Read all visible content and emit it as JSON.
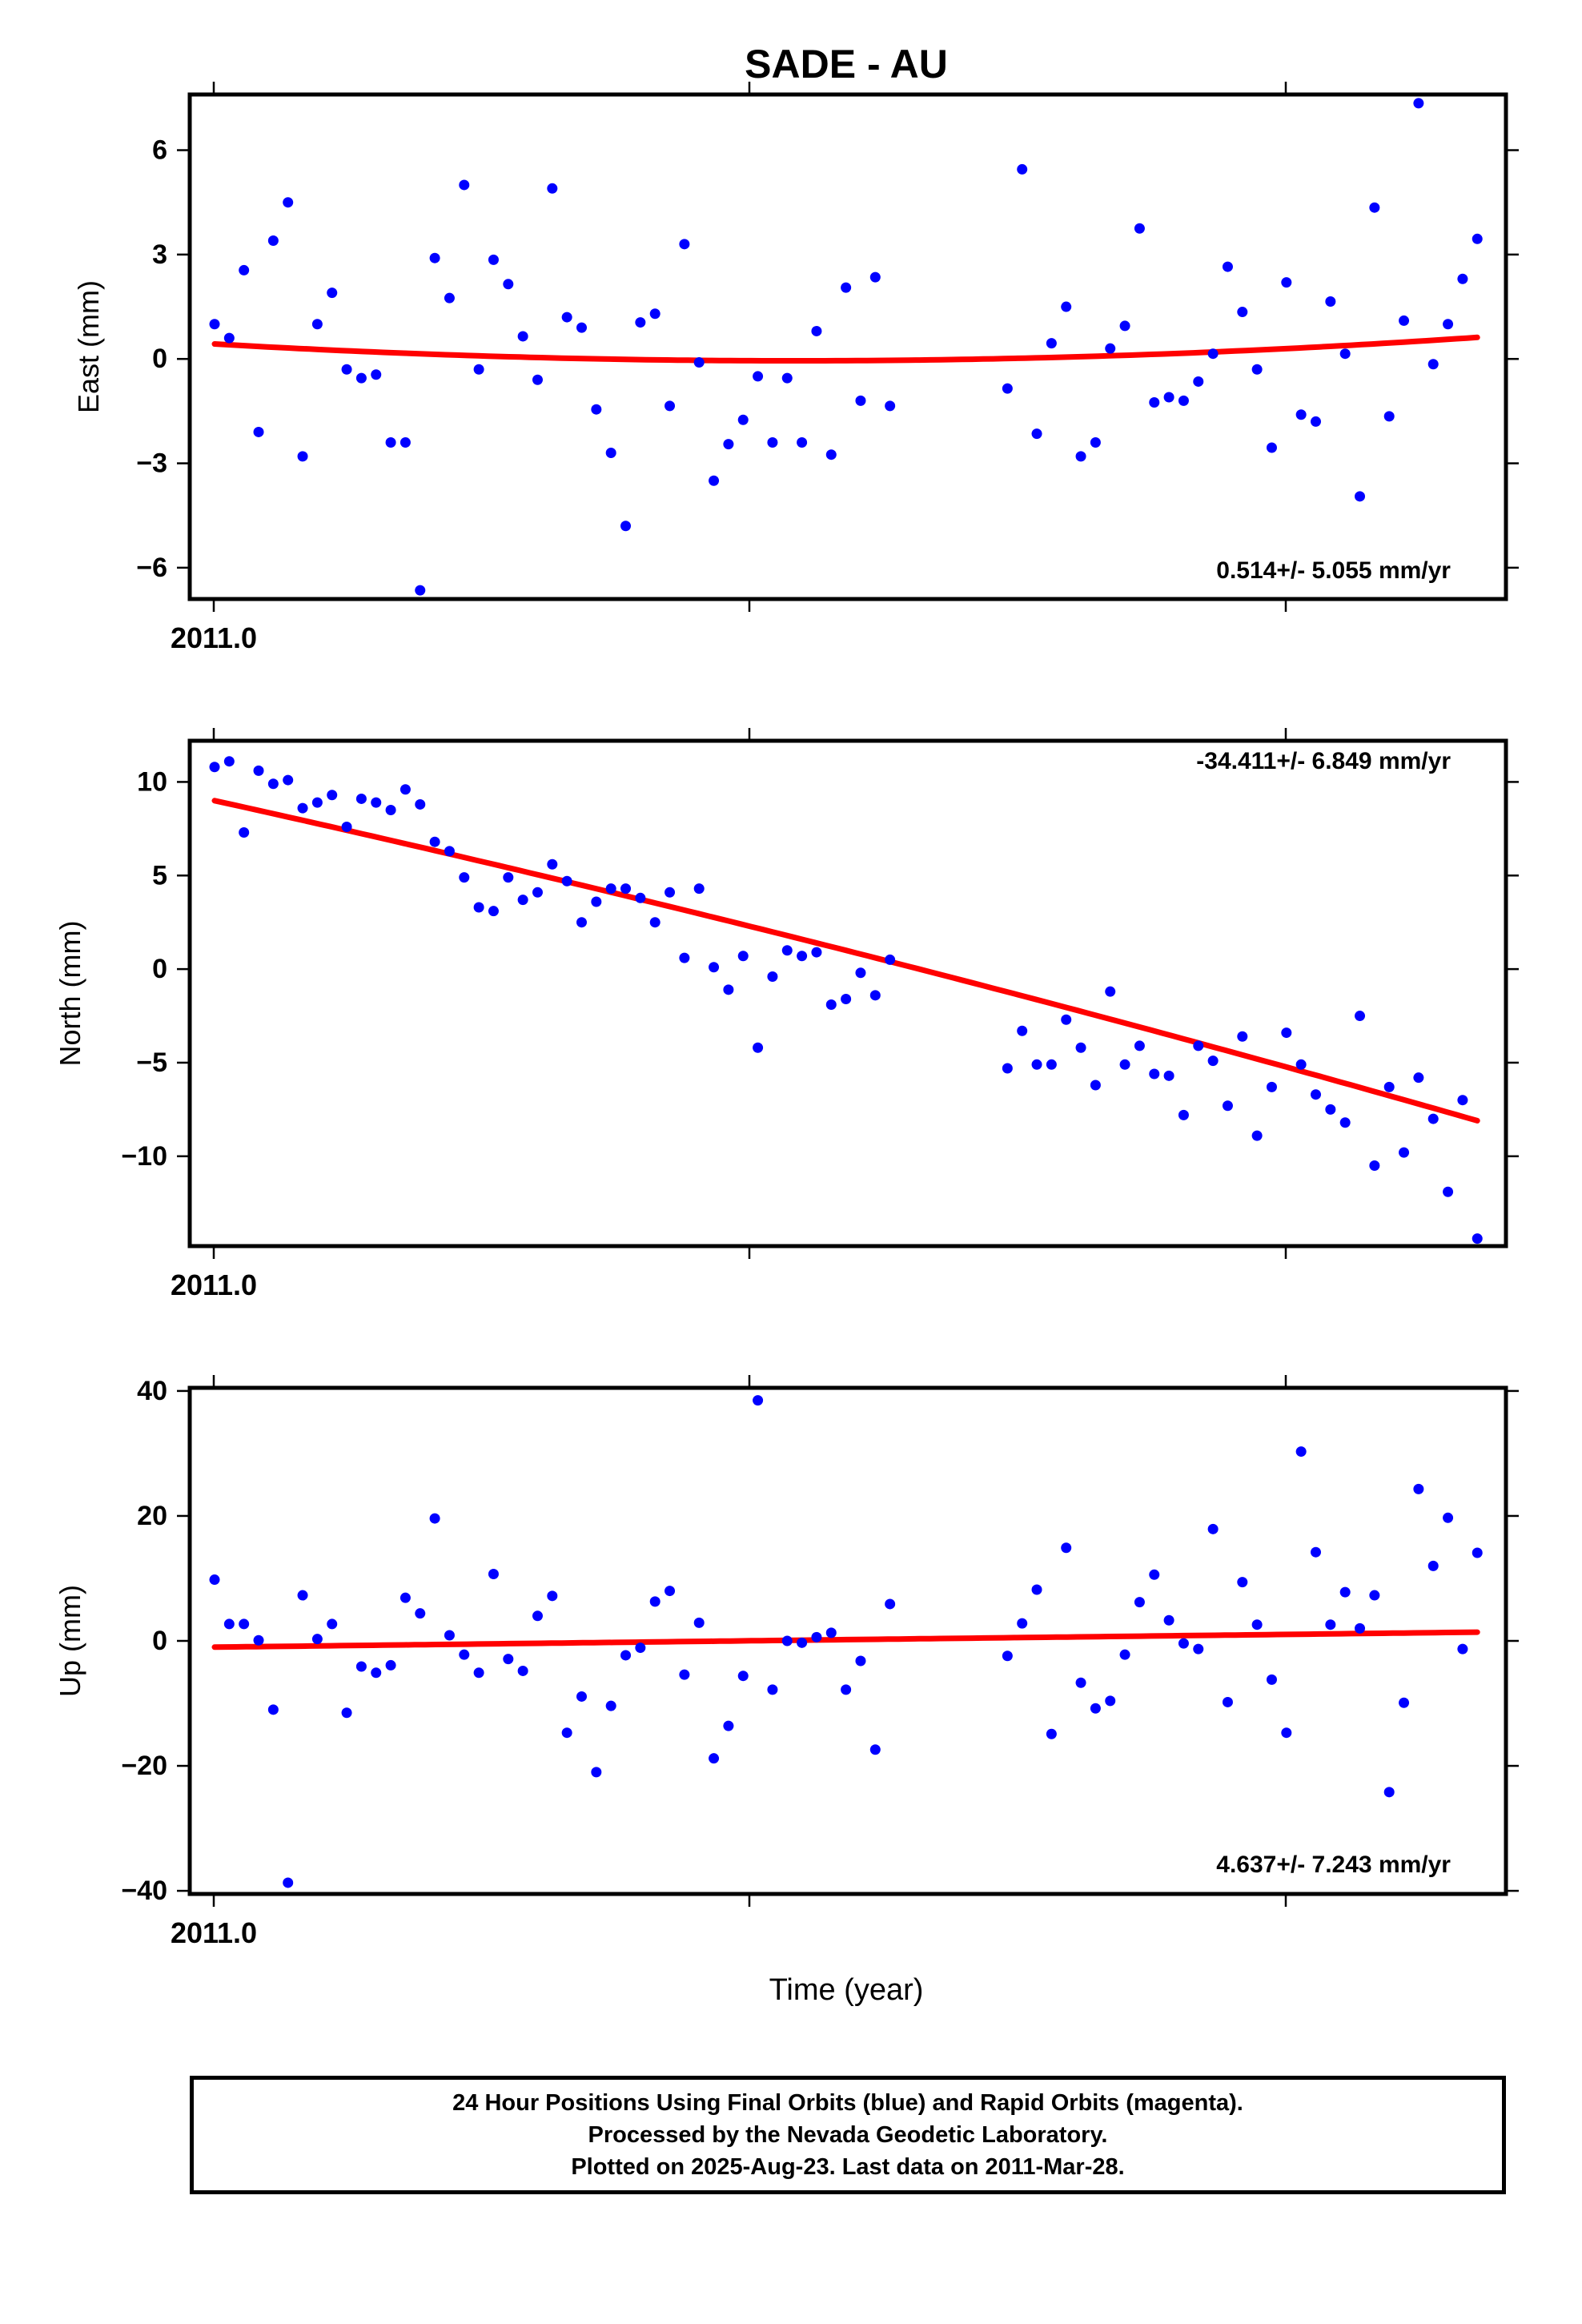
{
  "chart_data": [
    {
      "type": "scatter",
      "title": "SADE - AU",
      "ylabel": "East (mm)",
      "xlabel": "",
      "x_tick_label": "2011.0",
      "ylim": [
        -6.9,
        7.6
      ],
      "yticks": [
        -6,
        -3,
        0,
        3,
        6
      ],
      "ytick_labels": [
        "−6",
        "−3",
        "0",
        "3",
        "6"
      ],
      "rate_label": "0.514+/- 5.055 mm/yr",
      "point_color": "#0000ff",
      "fit_color": "#ff0000",
      "days": [
        0,
        1,
        2,
        3,
        4,
        5,
        6,
        7,
        8,
        9,
        10,
        11,
        12,
        13,
        14,
        15,
        16,
        17,
        18,
        19,
        20,
        21,
        22,
        23,
        24,
        25,
        26,
        27,
        28,
        29,
        30,
        31,
        32,
        33,
        34,
        35,
        36,
        37,
        38,
        39,
        40,
        41,
        42,
        43,
        44,
        45,
        46,
        54,
        55,
        56,
        57,
        58,
        59,
        60,
        61,
        62,
        63,
        64,
        65,
        66,
        67,
        68,
        69,
        70,
        71,
        72,
        73,
        74,
        75,
        76,
        77,
        78,
        79,
        80,
        81,
        82,
        83,
        84,
        85,
        86
      ],
      "values": [
        1.0,
        0.6,
        2.55,
        -2.1,
        3.4,
        4.5,
        -2.8,
        1.0,
        1.9,
        -0.3,
        -0.55,
        -0.45,
        -2.4,
        -2.4,
        -6.65,
        2.9,
        1.75,
        5.0,
        -0.3,
        2.85,
        2.15,
        0.65,
        -0.6,
        4.9,
        1.2,
        0.9,
        -1.45,
        -2.7,
        -4.8,
        1.05,
        1.3,
        -1.35,
        3.3,
        -0.1,
        -3.5,
        -2.45,
        -1.75,
        -0.5,
        -2.4,
        -0.55,
        -2.4,
        0.8,
        -2.75,
        2.05,
        -1.2,
        2.35,
        -1.35,
        -0.85,
        5.45,
        -2.15,
        0.45,
        1.5,
        -2.8,
        -2.4,
        0.3,
        0.95,
        3.75,
        -1.25,
        -1.1,
        -1.2,
        -0.65,
        0.15,
        2.65,
        1.35,
        -0.3,
        -2.55,
        2.2,
        -1.6,
        -1.8,
        1.65,
        0.15,
        -3.95,
        4.35,
        -1.65,
        1.1,
        7.35,
        -0.15,
        1.0,
        2.3,
        3.45
      ],
      "fit": [
        0.43,
        -0.05,
        0.62
      ]
    },
    {
      "type": "scatter",
      "ylabel": "North (mm)",
      "xlabel": "",
      "x_tick_label": "2011.0",
      "ylim": [
        -14.8,
        12.2
      ],
      "yticks": [
        -10,
        -5,
        0,
        5,
        10
      ],
      "ytick_labels": [
        "−10",
        "−5",
        "0",
        "5",
        "10"
      ],
      "rate_label": "-34.411+/- 6.849 mm/yr",
      "point_color": "#0000ff",
      "fit_color": "#ff0000",
      "days": [
        0,
        1,
        2,
        3,
        4,
        5,
        6,
        7,
        8,
        9,
        10,
        11,
        12,
        13,
        14,
        15,
        16,
        17,
        18,
        19,
        20,
        21,
        22,
        23,
        24,
        25,
        26,
        27,
        28,
        29,
        30,
        31,
        32,
        33,
        34,
        35,
        36,
        37,
        38,
        39,
        40,
        41,
        42,
        43,
        44,
        45,
        46,
        54,
        55,
        56,
        57,
        58,
        59,
        60,
        61,
        62,
        63,
        64,
        65,
        66,
        67,
        68,
        69,
        70,
        71,
        72,
        73,
        74,
        75,
        76,
        77,
        78,
        79,
        80,
        81,
        82,
        83,
        84,
        85,
        86
      ],
      "values": [
        10.8,
        11.1,
        7.3,
        10.6,
        9.9,
        10.1,
        8.6,
        8.9,
        9.3,
        7.6,
        9.1,
        8.9,
        8.5,
        9.6,
        8.8,
        6.8,
        6.3,
        4.9,
        3.3,
        3.1,
        4.9,
        3.7,
        4.1,
        5.6,
        4.7,
        2.5,
        3.6,
        4.3,
        4.3,
        3.8,
        2.5,
        4.1,
        0.6,
        4.3,
        0.1,
        -1.1,
        0.7,
        -4.2,
        -0.4,
        1.0,
        0.7,
        0.9,
        -1.9,
        -1.6,
        -0.2,
        -1.4,
        0.5,
        -5.3,
        -3.3,
        -5.1,
        -5.1,
        -2.7,
        -4.2,
        -6.2,
        -1.2,
        -5.1,
        -4.1,
        -5.6,
        -5.7,
        -7.8,
        -4.1,
        -4.9,
        -7.3,
        -3.6,
        -8.9,
        -6.3,
        -3.4,
        -5.1,
        -6.7,
        -7.5,
        -8.2,
        -2.5,
        -10.5,
        -6.3,
        -9.8,
        -5.8,
        -8.0,
        -11.9,
        -7.0,
        -14.4
      ],
      "fit": [
        9.0,
        1.0,
        -8.1
      ]
    },
    {
      "type": "scatter",
      "ylabel": "Up (mm)",
      "xlabel": "Time (year)",
      "x_tick_label": "2011.0",
      "ylim": [
        -40.5,
        40.5
      ],
      "yticks": [
        -40,
        -20,
        0,
        20,
        40
      ],
      "ytick_labels": [
        "−40",
        "−20",
        "0",
        "20",
        "40"
      ],
      "rate_label": "4.637+/- 7.243 mm/yr",
      "point_color": "#0000ff",
      "fit_color": "#ff0000",
      "days": [
        0,
        1,
        2,
        3,
        4,
        5,
        6,
        7,
        8,
        9,
        10,
        11,
        12,
        13,
        14,
        15,
        16,
        17,
        18,
        19,
        20,
        21,
        22,
        23,
        24,
        25,
        26,
        27,
        28,
        29,
        30,
        31,
        32,
        33,
        34,
        35,
        36,
        37,
        38,
        39,
        40,
        41,
        42,
        43,
        44,
        45,
        46,
        54,
        55,
        56,
        57,
        58,
        59,
        60,
        61,
        62,
        63,
        64,
        65,
        66,
        67,
        68,
        69,
        70,
        71,
        72,
        73,
        74,
        75,
        76,
        77,
        78,
        79,
        80,
        81,
        82,
        83,
        84,
        85,
        86
      ],
      "values": [
        9.8,
        2.7,
        2.7,
        0.1,
        -11.0,
        -38.7,
        7.3,
        0.3,
        2.7,
        -11.5,
        -4.1,
        -5.1,
        -3.9,
        6.9,
        4.4,
        19.6,
        0.9,
        -2.2,
        -5.1,
        10.7,
        -2.9,
        -4.8,
        4.0,
        7.2,
        -14.7,
        -8.9,
        -21.0,
        -10.4,
        -2.3,
        -1.1,
        6.3,
        8.0,
        -5.4,
        2.9,
        -18.8,
        -13.6,
        -5.6,
        38.5,
        -7.8,
        0.0,
        -0.3,
        0.6,
        1.3,
        -7.8,
        -3.2,
        -17.4,
        5.9,
        -2.4,
        2.8,
        8.2,
        -14.9,
        14.9,
        -6.7,
        -10.8,
        -9.6,
        -2.2,
        6.2,
        10.6,
        3.3,
        -0.4,
        -1.3,
        17.9,
        -9.8,
        9.4,
        2.6,
        -6.2,
        -14.7,
        30.3,
        14.2,
        2.6,
        7.8,
        2.0,
        7.3,
        -24.2,
        -9.9,
        24.3,
        12.0,
        19.7,
        -1.3,
        14.1
      ],
      "fit": [
        -1.0,
        0.2,
        1.4
      ]
    }
  ],
  "caption": {
    "line1": "24 Hour Positions Using Final Orbits (blue) and Rapid Orbits (magenta).",
    "line2": "Processed by the Nevada Geodetic Laboratory.",
    "line3": "Plotted on 2025-Aug-23. Last data on 2011-Mar-28."
  }
}
